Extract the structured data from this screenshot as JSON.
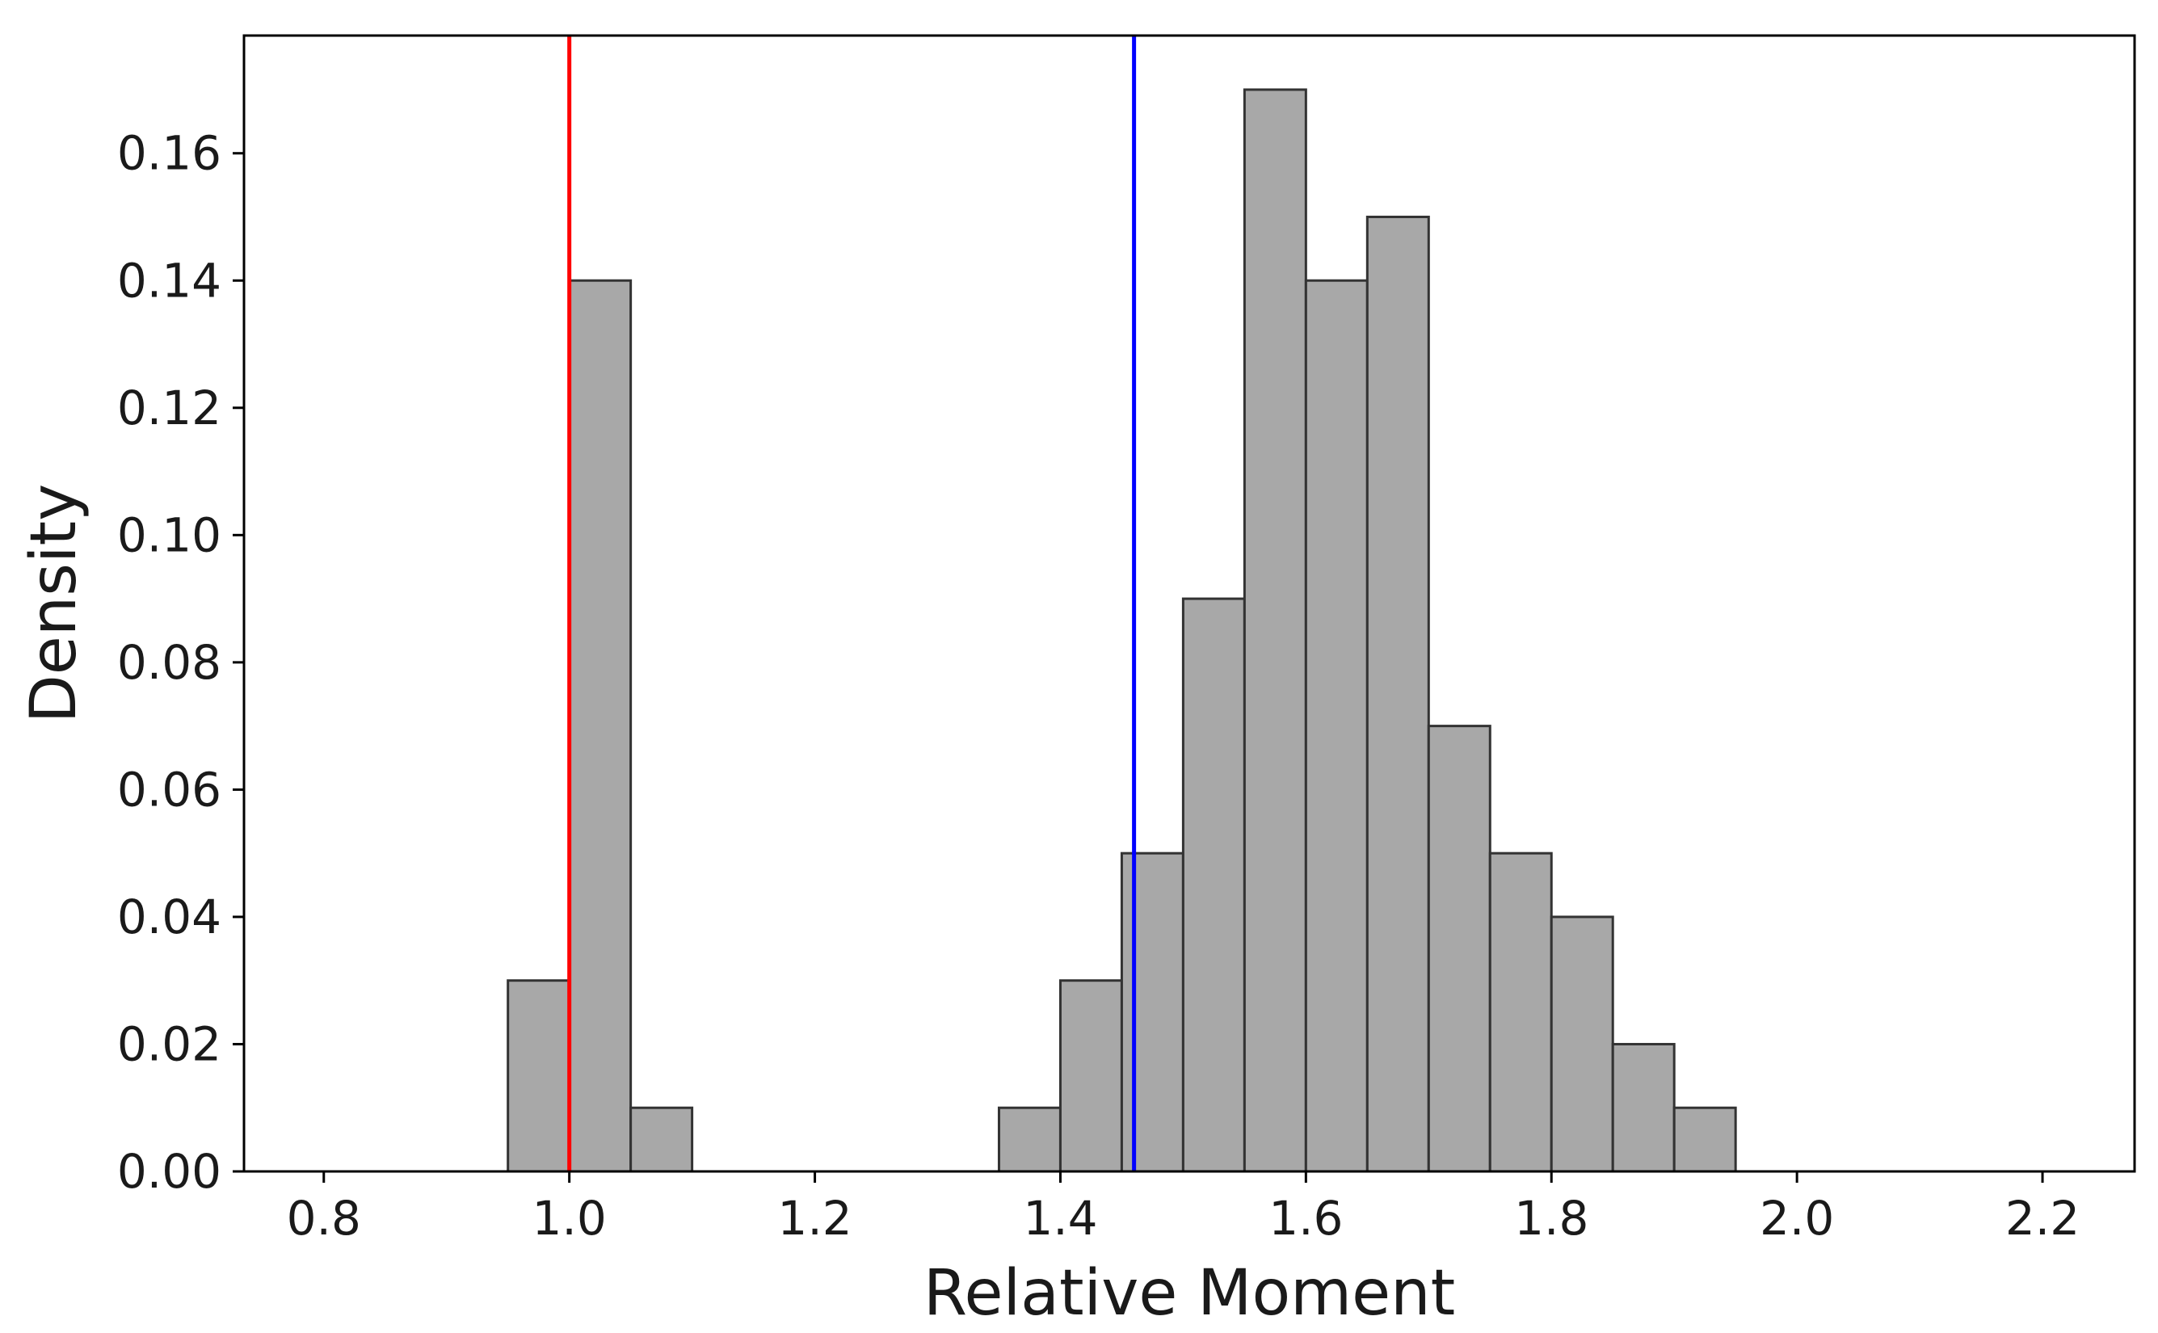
{
  "chart_data": {
    "type": "bar",
    "xlabel": "Relative Moment",
    "ylabel": "Density",
    "xlim": [
      0.735,
      2.275
    ],
    "ylim": [
      0,
      0.1785
    ],
    "xticks": [
      "0.8",
      "1.0",
      "1.2",
      "1.4",
      "1.6",
      "1.8",
      "2.0",
      "2.2"
    ],
    "yticks": [
      "0.00",
      "0.02",
      "0.04",
      "0.06",
      "0.08",
      "0.10",
      "0.12",
      "0.14",
      "0.16"
    ],
    "bin_width": 0.05,
    "bins": [
      {
        "start": 0.95,
        "value": 0.03
      },
      {
        "start": 1.0,
        "value": 0.14
      },
      {
        "start": 1.05,
        "value": 0.01
      },
      {
        "start": 1.35,
        "value": 0.01
      },
      {
        "start": 1.4,
        "value": 0.03
      },
      {
        "start": 1.45,
        "value": 0.05
      },
      {
        "start": 1.5,
        "value": 0.09
      },
      {
        "start": 1.55,
        "value": 0.17
      },
      {
        "start": 1.6,
        "value": 0.14
      },
      {
        "start": 1.65,
        "value": 0.15
      },
      {
        "start": 1.7,
        "value": 0.07
      },
      {
        "start": 1.75,
        "value": 0.05
      },
      {
        "start": 1.8,
        "value": 0.04
      },
      {
        "start": 1.85,
        "value": 0.02
      },
      {
        "start": 1.9,
        "value": 0.01
      }
    ],
    "vlines": [
      {
        "x": 1.0,
        "color": "#ff0000"
      },
      {
        "x": 1.46,
        "color": "#0000ff"
      }
    ],
    "baseline_range": [
      0.75,
      2.25
    ],
    "bar_color": "#a8a8a8",
    "edge_color": "#333333",
    "grid": false,
    "legend": "none"
  }
}
